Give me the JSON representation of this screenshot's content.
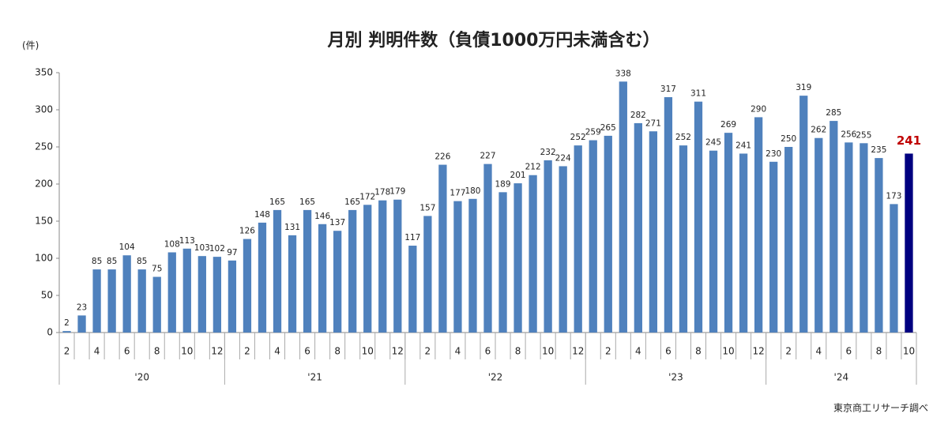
{
  "chart_data": {
    "type": "bar",
    "title": "月別 判明件数（負債1000万円未満含む）",
    "y_unit": "(件)",
    "source": "東京商工リサーチ調べ",
    "categories": [
      "2",
      null,
      "4",
      null,
      "6",
      null,
      "8",
      null,
      "10",
      null,
      "12",
      null,
      "2",
      null,
      "4",
      null,
      "6",
      null,
      "8",
      null,
      "10",
      null,
      "12",
      null,
      "2",
      null,
      "4",
      null,
      "6",
      null,
      "8",
      null,
      "10",
      null,
      "12",
      null,
      "2",
      null,
      "4",
      null,
      "6",
      null,
      "8",
      null,
      "10",
      null,
      "12",
      null,
      "2",
      null,
      "4",
      null,
      "6",
      null,
      "8",
      null,
      "10"
    ],
    "groups": [
      "'20",
      "'21",
      "'22",
      "'23",
      "'24"
    ],
    "values": [
      2,
      23,
      85,
      85,
      104,
      85,
      75,
      108,
      113,
      103,
      102,
      97,
      126,
      148,
      165,
      131,
      165,
      146,
      137,
      165,
      172,
      178,
      179,
      117,
      157,
      226,
      177,
      180,
      227,
      189,
      201,
      212,
      232,
      224,
      252,
      259,
      265,
      338,
      282,
      271,
      317,
      252,
      311,
      245,
      269,
      241,
      290,
      230,
      250,
      319,
      262,
      285,
      256,
      255,
      235,
      173,
      241
    ],
    "colors": [
      "#4f81bd",
      "#4f81bd",
      "#4f81bd",
      "#4f81bd",
      "#4f81bd",
      "#4f81bd",
      "#4f81bd",
      "#4f81bd",
      "#4f81bd",
      "#4f81bd",
      "#4f81bd",
      "#4f81bd",
      "#4f81bd",
      "#4f81bd",
      "#4f81bd",
      "#4f81bd",
      "#4f81bd",
      "#4f81bd",
      "#4f81bd",
      "#4f81bd",
      "#4f81bd",
      "#4f81bd",
      "#4f81bd",
      "#4f81bd",
      "#4f81bd",
      "#4f81bd",
      "#4f81bd",
      "#4f81bd",
      "#4f81bd",
      "#4f81bd",
      "#4f81bd",
      "#4f81bd",
      "#4f81bd",
      "#4f81bd",
      "#4f81bd",
      "#4f81bd",
      "#4f81bd",
      "#4f81bd",
      "#4f81bd",
      "#4f81bd",
      "#4f81bd",
      "#4f81bd",
      "#4f81bd",
      "#4f81bd",
      "#4f81bd",
      "#4f81bd",
      "#4f81bd",
      "#4f81bd",
      "#4f81bd",
      "#4f81bd",
      "#4f81bd",
      "#4f81bd",
      "#4f81bd",
      "#4f81bd",
      "#4f81bd",
      "#4f81bd",
      "#000080"
    ],
    "ylim": [
      0,
      350
    ],
    "yticks": [
      0,
      50,
      100,
      150,
      200,
      250,
      300,
      350
    ],
    "grid": false
  }
}
